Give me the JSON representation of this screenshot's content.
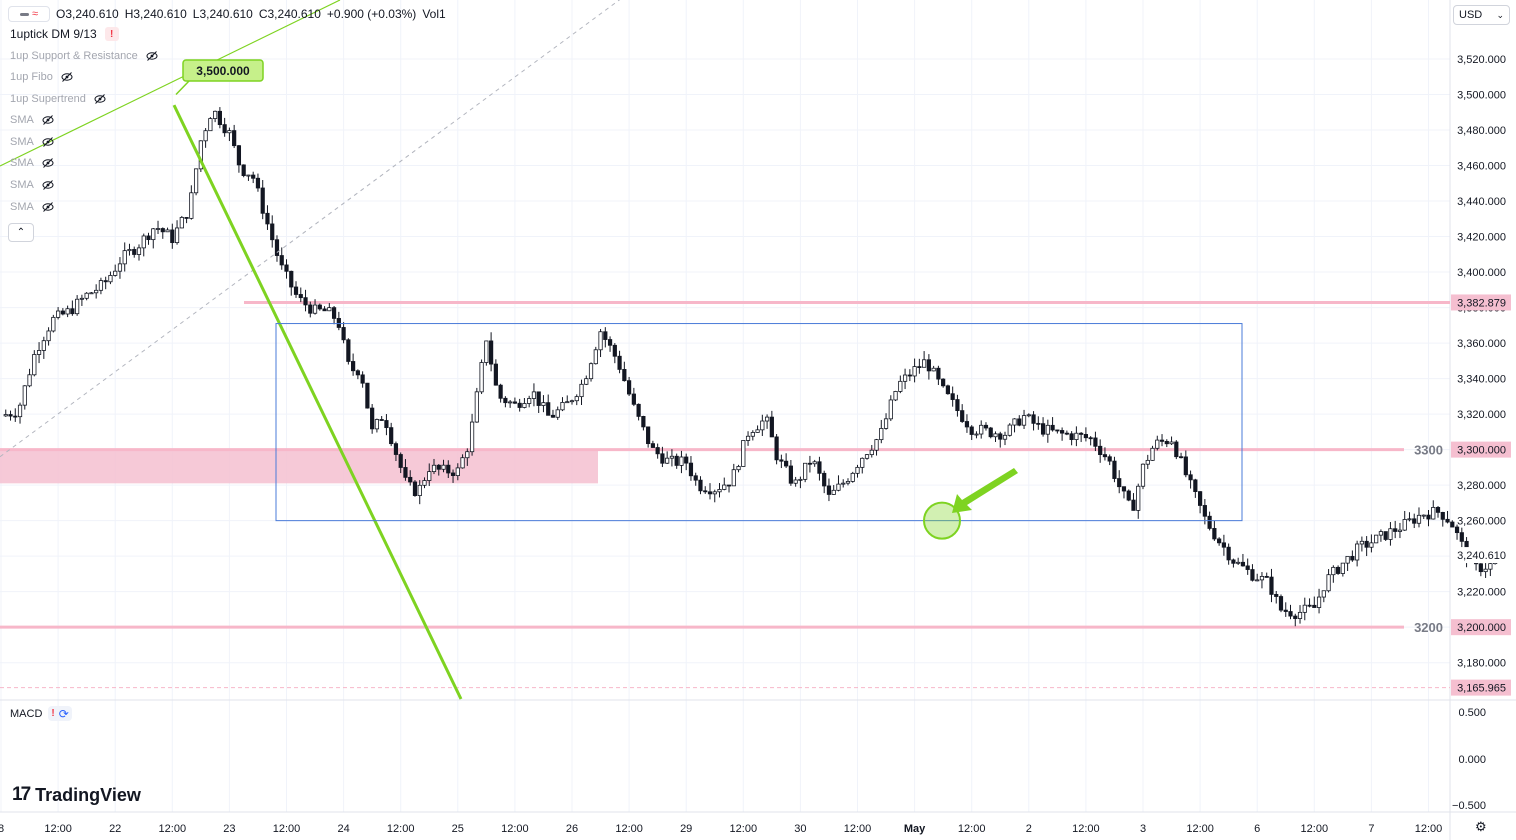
{
  "ohlc": {
    "open": "O3,240.610",
    "high": "H3,240.610",
    "low": "L3,240.610",
    "close": "C3,240.610",
    "change": "+0.900 (+0.03%)",
    "volume": "Vol1"
  },
  "indicators": {
    "main": "1uptick DM 9/13",
    "items": [
      "1up Support & Resistance",
      "1up Fibo",
      "1up Supertrend",
      "SMA",
      "SMA",
      "SMA",
      "SMA",
      "SMA"
    ],
    "macd": "MACD"
  },
  "currency": "USD",
  "brand": "TradingView",
  "colors": {
    "up": "#ffffff",
    "down": "#131722",
    "pink_line": "#f7b7c9",
    "pink_zone": "#f5bfd0",
    "green": "#7ed321",
    "box": "#4a7bd8",
    "grid": "#f0f3fa",
    "axis_text": "#131722"
  },
  "chart_data": {
    "type": "candlestick",
    "price_axis": {
      "ticks": [
        "3,520.000",
        "3,500.000",
        "3,480.000",
        "3,460.000",
        "3,440.000",
        "3,420.000",
        "3,400.000",
        "3,380.000",
        "3,360.000",
        "3,340.000",
        "3,320.000",
        "3,300.000",
        "3,280.000",
        "3,260.000",
        "3,240.000",
        "3,220.000",
        "3,200.000",
        "3,180.000"
      ],
      "ylim": [
        3165,
        3525
      ]
    },
    "time_axis": {
      "labels": [
        "8",
        "12:00",
        "22",
        "12:00",
        "23",
        "12:00",
        "24",
        "12:00",
        "25",
        "12:00",
        "26",
        "12:00",
        "29",
        "12:00",
        "30",
        "12:00",
        "May",
        "12:00",
        "2",
        "12:00",
        "3",
        "12:00",
        "6",
        "12:00",
        "7",
        "12:00"
      ]
    },
    "macd_axis": {
      "ticks": [
        "0.500",
        "0.000",
        "−0.500"
      ]
    },
    "price_labels": [
      {
        "label": "3,382.879",
        "value": 3382.879,
        "style": "pink"
      },
      {
        "label": "3,300.000",
        "value": 3300,
        "style": "pink"
      },
      {
        "label": "3,240.610",
        "value": 3240.61,
        "style": "current"
      },
      {
        "label": "3,200.000",
        "value": 3200,
        "style": "pink"
      },
      {
        "label": "3,165.965",
        "value": 3165.965,
        "style": "pink"
      }
    ],
    "levels": [
      {
        "label": "3300",
        "value": 3300
      },
      {
        "label": "3200",
        "value": 3200
      }
    ],
    "callout": {
      "label": "3,500.000",
      "value": 3500
    },
    "close_path": [
      [
        0,
        3319
      ],
      [
        0.15,
        3322
      ],
      [
        0.3,
        3355
      ],
      [
        0.45,
        3373
      ],
      [
        0.6,
        3378
      ],
      [
        0.75,
        3387
      ],
      [
        0.9,
        3393
      ],
      [
        1.05,
        3407
      ],
      [
        1.2,
        3415
      ],
      [
        1.35,
        3426
      ],
      [
        1.5,
        3419
      ],
      [
        1.65,
        3436
      ],
      [
        1.75,
        3474
      ],
      [
        1.85,
        3492
      ],
      [
        2.0,
        3478
      ],
      [
        2.1,
        3458
      ],
      [
        2.2,
        3455
      ],
      [
        2.3,
        3434
      ],
      [
        2.45,
        3403
      ],
      [
        2.6,
        3385
      ],
      [
        2.75,
        3378
      ],
      [
        2.85,
        3378
      ],
      [
        2.95,
        3373
      ],
      [
        3.05,
        3345
      ],
      [
        3.15,
        3345
      ],
      [
        3.25,
        3310
      ],
      [
        3.35,
        3320
      ],
      [
        3.45,
        3300
      ],
      [
        3.55,
        3280
      ],
      [
        3.65,
        3276
      ],
      [
        3.75,
        3290
      ],
      [
        3.85,
        3288
      ],
      [
        4.0,
        3288
      ],
      [
        4.1,
        3304
      ],
      [
        4.2,
        3343
      ],
      [
        4.25,
        3363
      ],
      [
        4.35,
        3330
      ],
      [
        4.5,
        3325
      ],
      [
        4.65,
        3333
      ],
      [
        4.8,
        3318
      ],
      [
        4.95,
        3325
      ],
      [
        5.1,
        3338
      ],
      [
        5.25,
        3367
      ],
      [
        5.4,
        3350
      ],
      [
        5.55,
        3322
      ],
      [
        5.7,
        3300
      ],
      [
        5.85,
        3293
      ],
      [
        6.0,
        3293
      ],
      [
        6.1,
        3280
      ],
      [
        6.25,
        3278
      ],
      [
        6.4,
        3283
      ],
      [
        6.55,
        3311
      ],
      [
        6.7,
        3317
      ],
      [
        6.8,
        3295
      ],
      [
        6.95,
        3280
      ],
      [
        7.1,
        3295
      ],
      [
        7.25,
        3273
      ],
      [
        7.4,
        3283
      ],
      [
        7.55,
        3297
      ],
      [
        7.7,
        3308
      ],
      [
        7.85,
        3336
      ],
      [
        8.0,
        3345
      ],
      [
        8.1,
        3350
      ],
      [
        8.25,
        3333
      ],
      [
        8.4,
        3320
      ],
      [
        8.5,
        3312
      ],
      [
        8.65,
        3310
      ],
      [
        8.8,
        3309
      ],
      [
        8.95,
        3319
      ],
      [
        9.1,
        3312
      ],
      [
        9.25,
        3309
      ],
      [
        9.4,
        3308
      ],
      [
        9.55,
        3306
      ],
      [
        9.7,
        3294
      ],
      [
        9.8,
        3278
      ],
      [
        9.9,
        3265
      ],
      [
        10.0,
        3290
      ],
      [
        10.1,
        3303
      ],
      [
        10.25,
        3306
      ],
      [
        10.4,
        3282
      ],
      [
        10.55,
        3260
      ],
      [
        10.65,
        3250
      ],
      [
        10.8,
        3237
      ],
      [
        10.95,
        3230
      ],
      [
        11.1,
        3225
      ],
      [
        11.2,
        3210
      ],
      [
        11.35,
        3208
      ],
      [
        11.5,
        3211
      ],
      [
        11.6,
        3226
      ],
      [
        11.75,
        3236
      ],
      [
        11.9,
        3245
      ],
      [
        12.0,
        3248
      ],
      [
        12.15,
        3253
      ],
      [
        12.3,
        3258
      ],
      [
        12.45,
        3264
      ],
      [
        12.6,
        3265
      ],
      [
        12.7,
        3259
      ],
      [
        12.8,
        3245
      ],
      [
        12.9,
        3233
      ],
      [
        13.05,
        3235
      ],
      [
        13.15,
        3240.61
      ]
    ]
  }
}
